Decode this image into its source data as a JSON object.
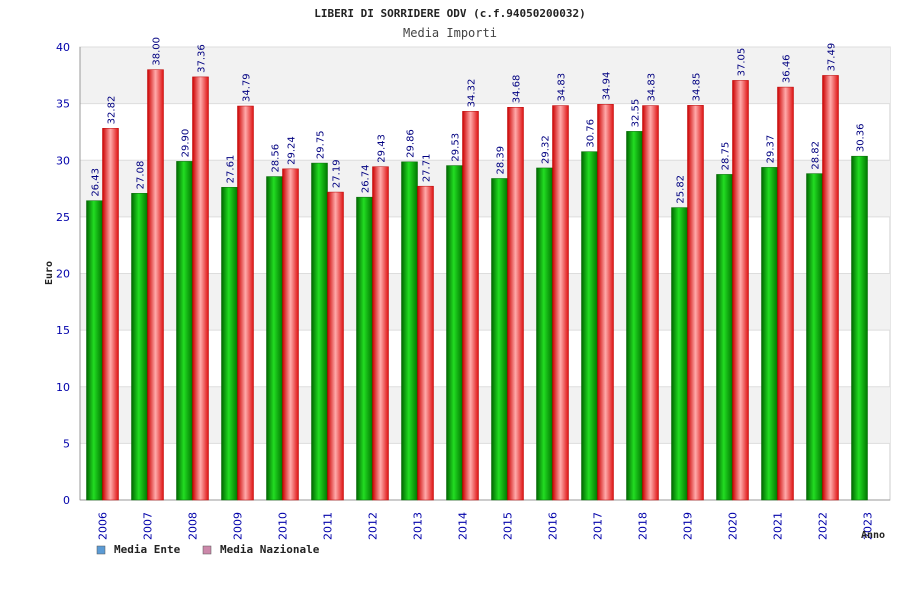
{
  "chart_data": {
    "type": "bar",
    "title": "LIBERI DI SORRIDERE ODV (c.f.94050200032)",
    "subtitle": "Media Importi",
    "xlabel": "Anno",
    "ylabel": "Euro",
    "ylim": [
      0,
      40
    ],
    "yticks": [
      0,
      5,
      10,
      15,
      20,
      25,
      30,
      35,
      40
    ],
    "grid": true,
    "legend_position": "bottom-left",
    "categories": [
      "2006",
      "2007",
      "2008",
      "2009",
      "2010",
      "2011",
      "2012",
      "2013",
      "2014",
      "2015",
      "2016",
      "2017",
      "2018",
      "2019",
      "2020",
      "2021",
      "2022",
      "2023"
    ],
    "series": [
      {
        "name": "Media Ente",
        "color": "#00aa00",
        "legend_color": "#5b9bd5",
        "values": [
          26.43,
          27.08,
          29.9,
          27.61,
          28.56,
          29.75,
          26.74,
          29.86,
          29.53,
          28.39,
          29.32,
          30.76,
          32.55,
          25.82,
          28.75,
          29.37,
          28.82,
          30.36
        ],
        "labels": [
          "26.43",
          "27.08",
          "29.90",
          "27.61",
          "28.56",
          "29.75",
          "26.74",
          "29.86",
          "29.53",
          "28.39",
          "29.32",
          "30.76",
          "32.55",
          "25.82",
          "28.75",
          "29.37",
          "28.82",
          "30.36"
        ]
      },
      {
        "name": "Media Nazionale",
        "color": "#ee2222",
        "legend_color": "#cc88aa",
        "values": [
          32.82,
          38.0,
          37.36,
          34.79,
          29.24,
          27.19,
          29.43,
          27.71,
          34.32,
          34.68,
          34.83,
          34.94,
          34.83,
          34.85,
          37.05,
          36.46,
          37.49,
          null
        ],
        "labels": [
          "32.82",
          "38.00",
          "37.36",
          "34.79",
          "29.24",
          "27.19",
          "29.43",
          "27.71",
          "34.32",
          "34.68",
          "34.83",
          "34.94",
          "34.83",
          "34.85",
          "37.05",
          "36.46",
          "37.49",
          ""
        ]
      }
    ]
  }
}
